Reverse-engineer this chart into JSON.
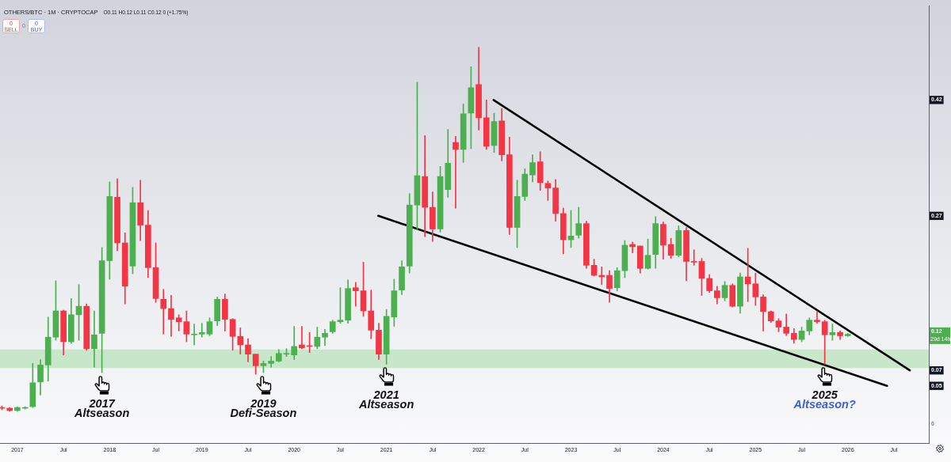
{
  "chart_data": {
    "type": "candlestick",
    "title": "OTHERS/BTC · 1M · CRYPTOCAP",
    "subtitle": "O0.11 H0.12 L0.11 C0.12 0 (+1.75%)",
    "series": [
      {
        "x": [
          "2016-11",
          "2016-12",
          "2017-01",
          "2017-02",
          "2017-03",
          "2017-04",
          "2017-05",
          "2017-06",
          "2017-07",
          "2017-08",
          "2017-09",
          "2017-10",
          "2017-11",
          "2017-12",
          "2018-01",
          "2018-02",
          "2018-03",
          "2018-04",
          "2018-05",
          "2018-06",
          "2018-07",
          "2018-08",
          "2018-09",
          "2018-10",
          "2018-11",
          "2018-12",
          "2019-01",
          "2019-02",
          "2019-03",
          "2019-04",
          "2019-05",
          "2019-06",
          "2019-07",
          "2019-08",
          "2019-09",
          "2019-10",
          "2019-11",
          "2019-12",
          "2020-01",
          "2020-02",
          "2020-03",
          "2020-04",
          "2020-05",
          "2020-06",
          "2020-07",
          "2020-08",
          "2020-09",
          "2020-10",
          "2020-11",
          "2020-12",
          "2021-01",
          "2021-02",
          "2021-03",
          "2021-04",
          "2021-05",
          "2021-06",
          "2021-07",
          "2021-08",
          "2021-09",
          "2021-10",
          "2021-11",
          "2021-12",
          "2022-01",
          "2022-02",
          "2022-03",
          "2022-04",
          "2022-05",
          "2022-06",
          "2022-07",
          "2022-08",
          "2022-09",
          "2022-10",
          "2022-11",
          "2022-12",
          "2023-01",
          "2023-02",
          "2023-03",
          "2023-04",
          "2023-05",
          "2023-06",
          "2023-07",
          "2023-08",
          "2023-09",
          "2023-10",
          "2023-11",
          "2023-12",
          "2024-01",
          "2024-02",
          "2024-03",
          "2024-04",
          "2024-05",
          "2024-06",
          "2024-07",
          "2024-08",
          "2024-09",
          "2024-10",
          "2024-11",
          "2024-12",
          "2025-01",
          "2025-02",
          "2025-03",
          "2025-04",
          "2025-05",
          "2025-06",
          "2025-07",
          "2025-08",
          "2025-09",
          "2025-10",
          "2025-11",
          "2025-12",
          "2026-01"
        ],
        "ohlc": [
          [
            0.022,
            0.024,
            0.019,
            0.021
          ],
          [
            0.021,
            0.022,
            0.017,
            0.018
          ],
          [
            0.018,
            0.023,
            0.017,
            0.022
          ],
          [
            0.021,
            0.023,
            0.02,
            0.022
          ],
          [
            0.023,
            0.079,
            0.022,
            0.054
          ],
          [
            0.055,
            0.084,
            0.038,
            0.077
          ],
          [
            0.077,
            0.139,
            0.056,
            0.113
          ],
          [
            0.113,
            0.186,
            0.109,
            0.147
          ],
          [
            0.147,
            0.148,
            0.09,
            0.107
          ],
          [
            0.107,
            0.163,
            0.105,
            0.142
          ],
          [
            0.142,
            0.181,
            0.109,
            0.153
          ],
          [
            0.153,
            0.156,
            0.096,
            0.098
          ],
          [
            0.098,
            0.147,
            0.074,
            0.116
          ],
          [
            0.118,
            0.229,
            0.067,
            0.212
          ],
          [
            0.212,
            0.314,
            0.188,
            0.295
          ],
          [
            0.294,
            0.318,
            0.225,
            0.235
          ],
          [
            0.235,
            0.248,
            0.156,
            0.179
          ],
          [
            0.205,
            0.307,
            0.195,
            0.287
          ],
          [
            0.287,
            0.316,
            0.238,
            0.258
          ],
          [
            0.258,
            0.277,
            0.19,
            0.203
          ],
          [
            0.203,
            0.235,
            0.158,
            0.163
          ],
          [
            0.162,
            0.175,
            0.117,
            0.15
          ],
          [
            0.15,
            0.167,
            0.114,
            0.136
          ],
          [
            0.138,
            0.142,
            0.121,
            0.133
          ],
          [
            0.133,
            0.147,
            0.107,
            0.117
          ],
          [
            0.117,
            0.13,
            0.103,
            0.117
          ],
          [
            0.117,
            0.131,
            0.113,
            0.119
          ],
          [
            0.117,
            0.138,
            0.115,
            0.133
          ],
          [
            0.134,
            0.165,
            0.128,
            0.162
          ],
          [
            0.162,
            0.169,
            0.121,
            0.136
          ],
          [
            0.136,
            0.137,
            0.096,
            0.114
          ],
          [
            0.114,
            0.125,
            0.091,
            0.103
          ],
          [
            0.103,
            0.111,
            0.081,
            0.091
          ],
          [
            0.091,
            0.091,
            0.065,
            0.076
          ],
          [
            0.076,
            0.082,
            0.067,
            0.079
          ],
          [
            0.079,
            0.088,
            0.074,
            0.082
          ],
          [
            0.082,
            0.097,
            0.081,
            0.092
          ],
          [
            0.092,
            0.098,
            0.088,
            0.092
          ],
          [
            0.09,
            0.127,
            0.084,
            0.101
          ],
          [
            0.103,
            0.127,
            0.098,
            0.099
          ],
          [
            0.102,
            0.119,
            0.093,
            0.101
          ],
          [
            0.101,
            0.126,
            0.098,
            0.113
          ],
          [
            0.113,
            0.123,
            0.102,
            0.118
          ],
          [
            0.12,
            0.135,
            0.118,
            0.133
          ],
          [
            0.133,
            0.177,
            0.131,
            0.135
          ],
          [
            0.135,
            0.187,
            0.131,
            0.176
          ],
          [
            0.177,
            0.184,
            0.153,
            0.173
          ],
          [
            0.173,
            0.21,
            0.14,
            0.147
          ],
          [
            0.147,
            0.174,
            0.111,
            0.122
          ],
          [
            0.122,
            0.131,
            0.084,
            0.091
          ],
          [
            0.091,
            0.149,
            0.078,
            0.14
          ],
          [
            0.139,
            0.188,
            0.127,
            0.173
          ],
          [
            0.174,
            0.212,
            0.168,
            0.204
          ],
          [
            0.205,
            0.299,
            0.196,
            0.284
          ],
          [
            0.284,
            0.443,
            0.252,
            0.322
          ],
          [
            0.321,
            0.374,
            0.243,
            0.281
          ],
          [
            0.281,
            0.301,
            0.237,
            0.253
          ],
          [
            0.253,
            0.334,
            0.249,
            0.321
          ],
          [
            0.304,
            0.382,
            0.294,
            0.338
          ],
          [
            0.365,
            0.373,
            0.28,
            0.356
          ],
          [
            0.356,
            0.415,
            0.339,
            0.402
          ],
          [
            0.403,
            0.463,
            0.357,
            0.436
          ],
          [
            0.44,
            0.488,
            0.381,
            0.397
          ],
          [
            0.397,
            0.42,
            0.356,
            0.36
          ],
          [
            0.361,
            0.403,
            0.352,
            0.392
          ],
          [
            0.393,
            0.409,
            0.341,
            0.349
          ],
          [
            0.349,
            0.372,
            0.246,
            0.255
          ],
          [
            0.255,
            0.316,
            0.229,
            0.295
          ],
          [
            0.295,
            0.331,
            0.29,
            0.324
          ],
          [
            0.323,
            0.349,
            0.314,
            0.339
          ],
          [
            0.34,
            0.353,
            0.303,
            0.313
          ],
          [
            0.312,
            0.315,
            0.29,
            0.306
          ],
          [
            0.306,
            0.317,
            0.263,
            0.273
          ],
          [
            0.273,
            0.28,
            0.221,
            0.239
          ],
          [
            0.239,
            0.277,
            0.229,
            0.244
          ],
          [
            0.245,
            0.281,
            0.241,
            0.26
          ],
          [
            0.26,
            0.263,
            0.202,
            0.206
          ],
          [
            0.206,
            0.214,
            0.192,
            0.193
          ],
          [
            0.193,
            0.204,
            0.181,
            0.191
          ],
          [
            0.193,
            0.199,
            0.158,
            0.176
          ],
          [
            0.177,
            0.203,
            0.173,
            0.199
          ],
          [
            0.199,
            0.238,
            0.19,
            0.232
          ],
          [
            0.233,
            0.236,
            0.222,
            0.23
          ],
          [
            0.231,
            0.231,
            0.196,
            0.202
          ],
          [
            0.202,
            0.24,
            0.201,
            0.219
          ],
          [
            0.22,
            0.269,
            0.202,
            0.26
          ],
          [
            0.259,
            0.262,
            0.214,
            0.232
          ],
          [
            0.233,
            0.241,
            0.215,
            0.219
          ],
          [
            0.219,
            0.257,
            0.217,
            0.251
          ],
          [
            0.251,
            0.255,
            0.186,
            0.211
          ],
          [
            0.211,
            0.226,
            0.206,
            0.21
          ],
          [
            0.211,
            0.215,
            0.167,
            0.189
          ],
          [
            0.189,
            0.194,
            0.171,
            0.173
          ],
          [
            0.173,
            0.179,
            0.156,
            0.164
          ],
          [
            0.164,
            0.185,
            0.16,
            0.18
          ],
          [
            0.18,
            0.182,
            0.152,
            0.153
          ],
          [
            0.153,
            0.196,
            0.144,
            0.191
          ],
          [
            0.191,
            0.228,
            0.159,
            0.182
          ],
          [
            0.182,
            0.196,
            0.154,
            0.165
          ],
          [
            0.165,
            0.168,
            0.121,
            0.146
          ],
          [
            0.146,
            0.147,
            0.132,
            0.134
          ],
          [
            0.134,
            0.137,
            0.12,
            0.126
          ],
          [
            0.126,
            0.143,
            0.115,
            0.118
          ],
          [
            0.118,
            0.124,
            0.105,
            0.11
          ],
          [
            0.11,
            0.126,
            0.107,
            0.121
          ],
          [
            0.121,
            0.138,
            0.116,
            0.135
          ],
          [
            0.135,
            0.147,
            0.131,
            0.133
          ],
          [
            0.133,
            0.135,
            0.078,
            0.116
          ],
          [
            0.116,
            0.13,
            0.109,
            0.119
          ],
          [
            0.119,
            0.121,
            0.11,
            0.1148
          ],
          [
            0.1148,
            0.118,
            0.1141,
            0.1168
          ]
        ]
      },
      {
        "type": "line",
        "color": "#000000",
        "x": [
          "2022-02-27",
          "2026-09-03"
        ],
        "values": [
          0.42,
          0.07
        ]
      },
      {
        "type": "line",
        "color": "#000000",
        "x": [
          "2020-11-29",
          "2026-06-04"
        ],
        "values": [
          0.27,
          0.05
        ]
      }
    ],
    "xlim": [
      "2016-10-24",
      "2026-11-17"
    ],
    "xticks": [
      {
        "value": "2017-01",
        "label": "2017"
      },
      {
        "value": "2017-07",
        "label": "Jul"
      },
      {
        "value": "2018-01",
        "label": "2018"
      },
      {
        "value": "2018-07",
        "label": "Jul"
      },
      {
        "value": "2019-01",
        "label": "2019"
      },
      {
        "value": "2019-07",
        "label": "Jul"
      },
      {
        "value": "2020-01",
        "label": "2020"
      },
      {
        "value": "2020-07",
        "label": "Jul"
      },
      {
        "value": "2021-01",
        "label": "2021"
      },
      {
        "value": "2021-07",
        "label": "Jul"
      },
      {
        "value": "2022-01",
        "label": "2022"
      },
      {
        "value": "2022-07",
        "label": "Jul"
      },
      {
        "value": "2023-01",
        "label": "2023"
      },
      {
        "value": "2023-07",
        "label": "Jul"
      },
      {
        "value": "2024-01",
        "label": "2024"
      },
      {
        "value": "2024-07",
        "label": "Jul"
      },
      {
        "value": "2025-01",
        "label": "2025"
      },
      {
        "value": "2025-07",
        "label": "Jul"
      },
      {
        "value": "2026-01",
        "label": "2026"
      },
      {
        "value": "2026-07",
        "label": "Jul"
      }
    ],
    "ylim": [
      -0.024,
      0.542
    ],
    "yticks": [
      0,
      0.05,
      0.07,
      0.12,
      0.27,
      0.42
    ],
    "bands": [
      {
        "axis": "y",
        "from": 0.073,
        "to": 0.097,
        "color": "#c8e6c9"
      }
    ],
    "annotations": [
      {
        "text": "2017",
        "x": "2017-12",
        "y": 0.067
      },
      {
        "text": "Altseason",
        "x": "2017-12",
        "y": 0.067
      },
      {
        "text": "2019",
        "x": "2019-09",
        "y": 0.067
      },
      {
        "text": "Defi-Season",
        "x": "2019-09",
        "y": 0.067
      },
      {
        "text": "2021",
        "x": "2021-01",
        "y": 0.078
      },
      {
        "text": "Altseason",
        "x": "2021-01",
        "y": 0.078
      },
      {
        "text": "2025",
        "x": "2025-10",
        "y": 0.078
      },
      {
        "text": "Altseason?",
        "x": "2025-10",
        "y": 0.078
      },
      "0",
      "SELL",
      "0",
      "0",
      "BUY",
      "29d 14h"
    ]
  }
}
